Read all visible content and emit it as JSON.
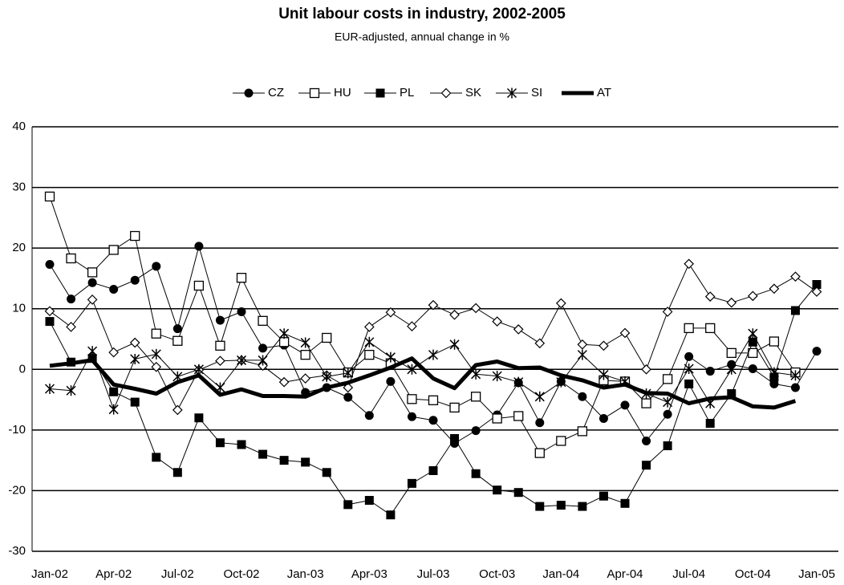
{
  "chart_data": {
    "type": "line",
    "title": "Unit labour costs in industry, 2002-2005",
    "subtitle": "EUR-adjusted, annual change in %",
    "categories": [
      "Jan-02",
      null,
      null,
      "Apr-02",
      null,
      null,
      "Jul-02",
      null,
      null,
      "Oct-02",
      null,
      null,
      "Jan-03",
      null,
      null,
      "Apr-03",
      null,
      null,
      "Jul-03",
      null,
      null,
      "Oct-03",
      null,
      null,
      "Jan-04",
      null,
      null,
      "Apr-04",
      null,
      null,
      "Jul-04",
      null,
      null,
      "Oct-04",
      null,
      null,
      "Jan-05"
    ],
    "series": [
      {
        "name": "CZ",
        "color": "#000000",
        "marker": "circle",
        "values": [
          17.3,
          11.6,
          14.3,
          13.2,
          14.7,
          17,
          6.7,
          20.3,
          8.1,
          9.5,
          3.5,
          4,
          -3.8,
          -3,
          -4.6,
          -7.6,
          -2,
          -7.8,
          -8.4,
          -12.2,
          -10.1,
          -7.5,
          -2.2,
          -8.8,
          -2,
          -4.5,
          -8.1,
          -5.9,
          -11.8,
          -7.4,
          2.1,
          -0.3,
          0.8,
          0.1,
          -2.4,
          -3,
          3
        ]
      },
      {
        "name": "HU",
        "color": "#000000",
        "marker": "open-square",
        "values": [
          28.5,
          18.3,
          16,
          19.7,
          22,
          5.9,
          4.7,
          13.8,
          3.9,
          15.1,
          8,
          4.5,
          2.4,
          5.2,
          -0.5,
          2.4,
          1,
          -4.9,
          -5.1,
          -6.3,
          -4.5,
          -8.1,
          -7.7,
          -13.8,
          -11.8,
          -10.2,
          -1.8,
          -2,
          -5.6,
          -1.6,
          6.8,
          6.8,
          2.7,
          2.7,
          4.6,
          -0.5,
          null
        ]
      },
      {
        "name": "PL",
        "color": "#000000",
        "marker": "square",
        "values": [
          7.9,
          1.2,
          1.8,
          -3.7,
          -5.4,
          -14.5,
          -17,
          -8,
          -12.1,
          -12.4,
          -14,
          -15,
          -15.3,
          -17,
          -22.3,
          -21.6,
          -24,
          -18.8,
          -16.7,
          -11.4,
          -17.2,
          -19.9,
          -20.3,
          -22.6,
          -22.4,
          -22.6,
          -20.9,
          -22.1,
          -15.8,
          -12.6,
          -2.4,
          -8.9,
          -4,
          4.5,
          -1.3,
          9.7,
          14
        ]
      },
      {
        "name": "SK",
        "color": "#000000",
        "marker": "open-diamond",
        "values": [
          9.6,
          7,
          11.5,
          2.8,
          4.4,
          0.4,
          -6.7,
          -0.1,
          1.4,
          1.5,
          0.6,
          -2.1,
          -1.5,
          -1,
          -3,
          7,
          9.4,
          7.1,
          10.6,
          9,
          10.1,
          7.9,
          6.6,
          4.3,
          10.9,
          4.1,
          3.9,
          6,
          0,
          9.5,
          17.4,
          12,
          11,
          12.1,
          13.3,
          15.3,
          12.8
        ]
      },
      {
        "name": "SI",
        "color": "#000000",
        "marker": "star",
        "values": [
          -3.2,
          -3.5,
          3,
          -6.6,
          1.7,
          2.5,
          -1.2,
          0,
          -3,
          1.5,
          1.5,
          5.9,
          4.4,
          -1.2,
          -0.6,
          4.5,
          2,
          0,
          2.4,
          4.1,
          -0.8,
          -1.1,
          -2.1,
          -4.5,
          -2.1,
          2.4,
          -0.9,
          -2,
          -4,
          -5.4,
          0.1,
          -5.6,
          0,
          5.9,
          -0.5,
          -1,
          null
        ]
      },
      {
        "name": "AT",
        "color": "#000000",
        "marker": "thick-line",
        "values": [
          0.6,
          1,
          1.5,
          -2.5,
          -3.2,
          -4,
          -2.1,
          -1,
          -4.2,
          -3.3,
          -4.4,
          -4.4,
          -4.5,
          -3,
          -2.2,
          -1,
          0.3,
          1.8,
          -1.5,
          -3.1,
          0.7,
          1.3,
          0.2,
          0.3,
          -1,
          -1.8,
          -3,
          -2.5,
          -3.9,
          -4,
          -5.6,
          -4.8,
          -4.6,
          -6.1,
          -6.3,
          -5.2,
          null
        ]
      }
    ],
    "ylim": [
      -30,
      40
    ],
    "yticks": [
      -30,
      -20,
      -10,
      0,
      10,
      20,
      30,
      40
    ],
    "grid": true,
    "legend": "top"
  }
}
